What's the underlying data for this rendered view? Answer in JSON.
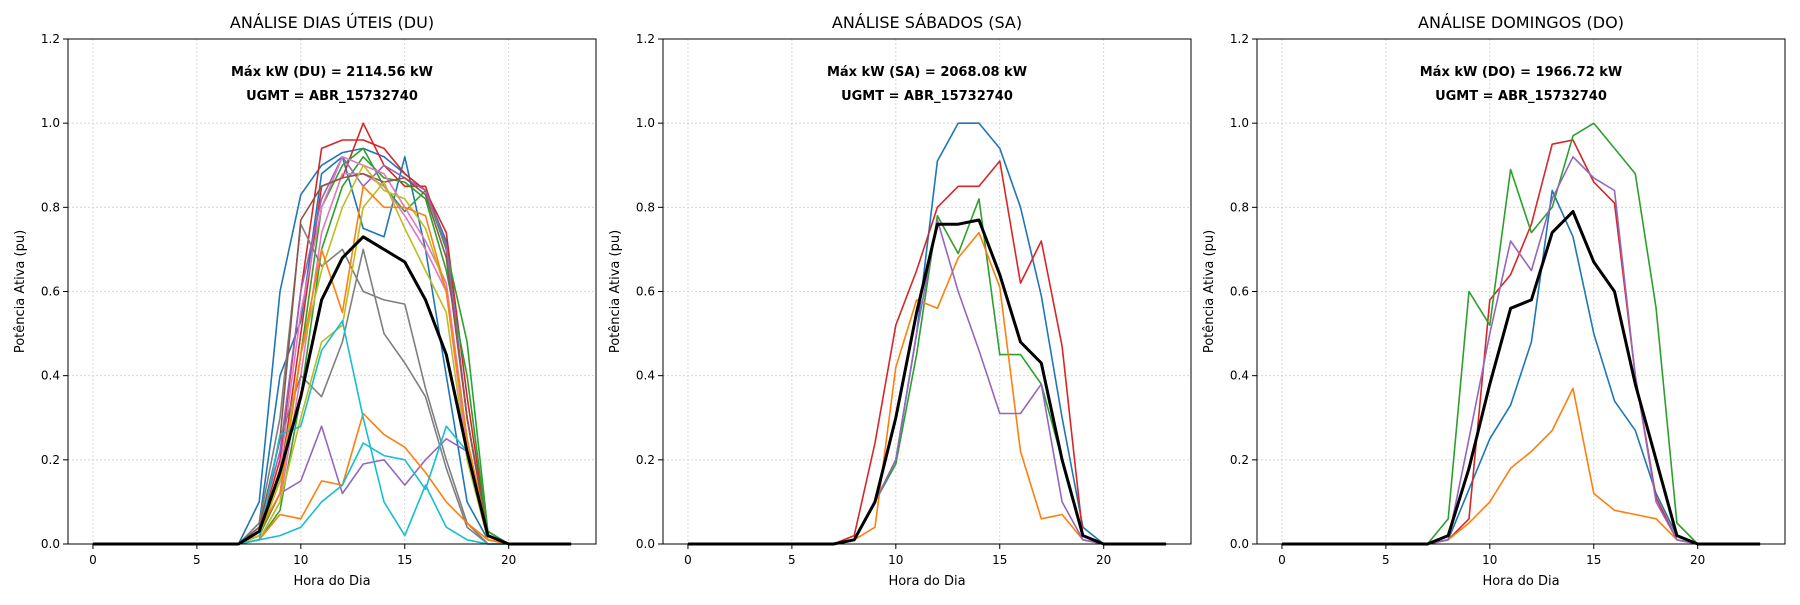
{
  "chart_data": [
    {
      "type": "line",
      "title": "ANÁLISE DIAS ÚTEIS (DU)",
      "xlabel": "Hora do Dia",
      "ylabel": "Potência Ativa (pu)",
      "xlim": [
        -1.2,
        24.2
      ],
      "ylim": [
        0,
        1.2
      ],
      "xticks": [
        0,
        5,
        10,
        15,
        20
      ],
      "yticks": [
        0.0,
        0.2,
        0.4,
        0.6,
        0.8,
        1.0,
        1.2
      ],
      "grid": true,
      "annotations": [
        "Máx kW (DU) = 2114.56 kW",
        "UGMT = ABR_15732740"
      ],
      "x": [
        0,
        1,
        2,
        3,
        4,
        5,
        6,
        7,
        8,
        9,
        10,
        11,
        12,
        13,
        14,
        15,
        16,
        17,
        18,
        19,
        20,
        21,
        22,
        23
      ],
      "series": [
        {
          "color": "#1f77b4",
          "values": [
            0,
            0,
            0,
            0,
            0,
            0,
            0,
            0,
            0.1,
            0.6,
            0.83,
            0.9,
            0.93,
            0.94,
            0.92,
            0.88,
            0.84,
            0.72,
            0.3,
            0.03,
            0,
            0,
            0,
            0
          ]
        },
        {
          "color": "#1f77b4",
          "values": [
            0,
            0,
            0,
            0,
            0,
            0,
            0,
            0,
            0.05,
            0.4,
            0.53,
            0.88,
            0.92,
            0.75,
            0.73,
            0.92,
            0.7,
            0.4,
            0.1,
            0.01,
            0,
            0,
            0,
            0
          ]
        },
        {
          "color": "#d62728",
          "values": [
            0,
            0,
            0,
            0,
            0,
            0,
            0,
            0,
            0.03,
            0.2,
            0.6,
            0.94,
            0.96,
            0.96,
            0.94,
            0.88,
            0.84,
            0.74,
            0.35,
            0.02,
            0,
            0,
            0,
            0
          ]
        },
        {
          "color": "#d62728",
          "values": [
            0,
            0,
            0,
            0,
            0,
            0,
            0,
            0,
            0.02,
            0.15,
            0.5,
            0.85,
            0.87,
            1.0,
            0.9,
            0.85,
            0.85,
            0.7,
            0.3,
            0.02,
            0,
            0,
            0,
            0
          ]
        },
        {
          "color": "#2ca02c",
          "values": [
            0,
            0,
            0,
            0,
            0,
            0,
            0,
            0,
            0.02,
            0.12,
            0.45,
            0.8,
            0.9,
            0.94,
            0.85,
            0.79,
            0.84,
            0.7,
            0.48,
            0.03,
            0,
            0,
            0,
            0
          ]
        },
        {
          "color": "#2ca02c",
          "values": [
            0,
            0,
            0,
            0,
            0,
            0,
            0,
            0,
            0.01,
            0.08,
            0.35,
            0.7,
            0.85,
            0.92,
            0.87,
            0.86,
            0.82,
            0.65,
            0.4,
            0.02,
            0,
            0,
            0,
            0
          ]
        },
        {
          "color": "#9467bd",
          "values": [
            0,
            0,
            0,
            0,
            0,
            0,
            0,
            0,
            0.04,
            0.22,
            0.6,
            0.82,
            0.92,
            0.85,
            0.9,
            0.87,
            0.84,
            0.71,
            0.3,
            0.02,
            0,
            0,
            0,
            0
          ]
        },
        {
          "color": "#9467bd",
          "values": [
            0,
            0,
            0,
            0,
            0,
            0,
            0,
            0,
            0.03,
            0.12,
            0.15,
            0.28,
            0.12,
            0.19,
            0.2,
            0.14,
            0.2,
            0.25,
            0.22,
            0.02,
            0,
            0,
            0,
            0
          ]
        },
        {
          "color": "#e377c2",
          "values": [
            0,
            0,
            0,
            0,
            0,
            0,
            0,
            0,
            0.02,
            0.18,
            0.55,
            0.8,
            0.92,
            0.9,
            0.88,
            0.8,
            0.72,
            0.62,
            0.25,
            0.02,
            0,
            0,
            0,
            0
          ]
        },
        {
          "color": "#e377c2",
          "values": [
            0,
            0,
            0,
            0,
            0,
            0,
            0,
            0,
            0.01,
            0.1,
            0.4,
            0.74,
            0.88,
            0.88,
            0.85,
            0.78,
            0.7,
            0.6,
            0.22,
            0.01,
            0,
            0,
            0,
            0
          ]
        },
        {
          "color": "#7f7f7f",
          "values": [
            0,
            0,
            0,
            0,
            0,
            0,
            0,
            0,
            0.05,
            0.3,
            0.76,
            0.66,
            0.7,
            0.6,
            0.58,
            0.57,
            0.37,
            0.2,
            0.05,
            0,
            0,
            0,
            0,
            0
          ]
        },
        {
          "color": "#7f7f7f",
          "values": [
            0,
            0,
            0,
            0,
            0,
            0,
            0,
            0,
            0.03,
            0.25,
            0.4,
            0.35,
            0.48,
            0.7,
            0.5,
            0.43,
            0.35,
            0.18,
            0.04,
            0,
            0,
            0,
            0,
            0
          ]
        },
        {
          "color": "#8c564b",
          "values": [
            0,
            0,
            0,
            0,
            0,
            0,
            0,
            0,
            0.04,
            0.25,
            0.77,
            0.85,
            0.87,
            0.88,
            0.86,
            0.87,
            0.83,
            0.68,
            0.3,
            0.02,
            0,
            0,
            0,
            0
          ]
        },
        {
          "color": "#bcbd22",
          "values": [
            0,
            0,
            0,
            0,
            0,
            0,
            0,
            0,
            0.02,
            0.15,
            0.45,
            0.65,
            0.8,
            0.9,
            0.84,
            0.82,
            0.75,
            0.6,
            0.25,
            0.02,
            0,
            0,
            0,
            0
          ]
        },
        {
          "color": "#bcbd22",
          "values": [
            0,
            0,
            0,
            0,
            0,
            0,
            0,
            0,
            0.01,
            0.1,
            0.3,
            0.48,
            0.52,
            0.8,
            0.86,
            0.75,
            0.65,
            0.55,
            0.2,
            0.01,
            0,
            0,
            0,
            0
          ]
        },
        {
          "color": "#ff7f0e",
          "values": [
            0,
            0,
            0,
            0,
            0,
            0,
            0,
            0,
            0.03,
            0.12,
            0.45,
            0.7,
            0.55,
            0.85,
            0.8,
            0.8,
            0.78,
            0.6,
            0.25,
            0.02,
            0,
            0,
            0,
            0
          ]
        },
        {
          "color": "#ff7f0e",
          "values": [
            0,
            0,
            0,
            0,
            0,
            0,
            0,
            0,
            0.01,
            0.07,
            0.06,
            0.15,
            0.14,
            0.31,
            0.26,
            0.23,
            0.17,
            0.1,
            0.05,
            0.01,
            0,
            0,
            0,
            0
          ]
        },
        {
          "color": "#17becf",
          "values": [
            0,
            0,
            0,
            0,
            0,
            0,
            0,
            0,
            0.01,
            0.26,
            0.28,
            0.46,
            0.53,
            0.3,
            0.1,
            0.02,
            0.14,
            0.04,
            0.01,
            0,
            0,
            0,
            0,
            0
          ]
        },
        {
          "color": "#17becf",
          "values": [
            0,
            0,
            0,
            0,
            0,
            0,
            0,
            0,
            0.01,
            0.02,
            0.04,
            0.1,
            0.14,
            0.24,
            0.21,
            0.2,
            0.13,
            0.28,
            0.22,
            0.02,
            0,
            0,
            0,
            0
          ]
        },
        {
          "color": "#000000",
          "width": 3,
          "values": [
            0,
            0,
            0,
            0,
            0,
            0,
            0,
            0,
            0.03,
            0.17,
            0.35,
            0.58,
            0.68,
            0.73,
            0.7,
            0.67,
            0.58,
            0.45,
            0.22,
            0.02,
            0,
            0,
            0,
            0
          ]
        }
      ]
    },
    {
      "type": "line",
      "title": "ANÁLISE SÁBADOS (SA)",
      "xlabel": "Hora do Dia",
      "ylabel": "Potência Ativa (pu)",
      "xlim": [
        -1.2,
        24.2
      ],
      "ylim": [
        0,
        1.2
      ],
      "xticks": [
        0,
        5,
        10,
        15,
        20
      ],
      "yticks": [
        0.0,
        0.2,
        0.4,
        0.6,
        0.8,
        1.0,
        1.2
      ],
      "grid": true,
      "annotations": [
        "Máx kW (SA) = 2068.08 kW",
        "UGMT = ABR_15732740"
      ],
      "x": [
        0,
        1,
        2,
        3,
        4,
        5,
        6,
        7,
        8,
        9,
        10,
        11,
        12,
        13,
        14,
        15,
        16,
        17,
        18,
        19,
        20,
        21,
        22,
        23
      ],
      "series": [
        {
          "color": "#1f77b4",
          "values": [
            0,
            0,
            0,
            0,
            0,
            0,
            0,
            0,
            0.01,
            0.1,
            0.2,
            0.5,
            0.91,
            1.0,
            1.0,
            0.94,
            0.8,
            0.59,
            0.3,
            0.04,
            0,
            0,
            0,
            0
          ]
        },
        {
          "color": "#d62728",
          "values": [
            0,
            0,
            0,
            0,
            0,
            0,
            0,
            0,
            0.02,
            0.24,
            0.52,
            0.65,
            0.8,
            0.85,
            0.85,
            0.91,
            0.62,
            0.72,
            0.47,
            0.02,
            0,
            0,
            0,
            0
          ]
        },
        {
          "color": "#2ca02c",
          "values": [
            0,
            0,
            0,
            0,
            0,
            0,
            0,
            0,
            0.01,
            0.1,
            0.19,
            0.45,
            0.78,
            0.69,
            0.82,
            0.45,
            0.45,
            0.38,
            0.2,
            0.02,
            0,
            0,
            0,
            0
          ]
        },
        {
          "color": "#ff7f0e",
          "values": [
            0,
            0,
            0,
            0,
            0,
            0,
            0,
            0,
            0.01,
            0.04,
            0.42,
            0.58,
            0.56,
            0.68,
            0.74,
            0.61,
            0.22,
            0.06,
            0.07,
            0.01,
            0,
            0,
            0,
            0
          ]
        },
        {
          "color": "#9467bd",
          "values": [
            0,
            0,
            0,
            0,
            0,
            0,
            0,
            0,
            0.01,
            0.1,
            0.2,
            0.5,
            0.77,
            0.6,
            0.46,
            0.31,
            0.31,
            0.38,
            0.1,
            0.01,
            0,
            0,
            0,
            0
          ]
        },
        {
          "color": "#000000",
          "width": 3,
          "values": [
            0,
            0,
            0,
            0,
            0,
            0,
            0,
            0,
            0.01,
            0.1,
            0.3,
            0.55,
            0.76,
            0.76,
            0.77,
            0.64,
            0.48,
            0.43,
            0.2,
            0.02,
            0,
            0,
            0,
            0
          ]
        }
      ]
    },
    {
      "type": "line",
      "title": "ANÁLISE DOMINGOS (DO)",
      "xlabel": "Hora do Dia",
      "ylabel": "Potência Ativa (pu)",
      "xlim": [
        -1.2,
        24.2
      ],
      "ylim": [
        0,
        1.2
      ],
      "xticks": [
        0,
        5,
        10,
        15,
        20
      ],
      "yticks": [
        0.0,
        0.2,
        0.4,
        0.6,
        0.8,
        1.0,
        1.2
      ],
      "grid": true,
      "annotations": [
        "Máx kW (DO) = 1966.72 kW",
        "UGMT = ABR_15732740"
      ],
      "x": [
        0,
        1,
        2,
        3,
        4,
        5,
        6,
        7,
        8,
        9,
        10,
        11,
        12,
        13,
        14,
        15,
        16,
        17,
        18,
        19,
        20,
        21,
        22,
        23
      ],
      "series": [
        {
          "color": "#1f77b4",
          "values": [
            0,
            0,
            0,
            0,
            0,
            0,
            0,
            0,
            0.01,
            0.13,
            0.25,
            0.33,
            0.48,
            0.84,
            0.73,
            0.5,
            0.34,
            0.27,
            0.12,
            0.02,
            0,
            0,
            0,
            0
          ]
        },
        {
          "color": "#d62728",
          "values": [
            0,
            0,
            0,
            0,
            0,
            0,
            0,
            0,
            0.01,
            0.06,
            0.58,
            0.64,
            0.76,
            0.95,
            0.96,
            0.86,
            0.81,
            0.4,
            0.11,
            0.01,
            0,
            0,
            0,
            0
          ]
        },
        {
          "color": "#2ca02c",
          "values": [
            0,
            0,
            0,
            0,
            0,
            0,
            0,
            0,
            0.06,
            0.6,
            0.52,
            0.89,
            0.74,
            0.8,
            0.97,
            1.0,
            0.94,
            0.88,
            0.56,
            0.05,
            0,
            0,
            0,
            0
          ]
        },
        {
          "color": "#ff7f0e",
          "values": [
            0,
            0,
            0,
            0,
            0,
            0,
            0,
            0,
            0.01,
            0.05,
            0.1,
            0.18,
            0.22,
            0.27,
            0.37,
            0.12,
            0.08,
            0.07,
            0.06,
            0.01,
            0,
            0,
            0,
            0
          ]
        },
        {
          "color": "#9467bd",
          "values": [
            0,
            0,
            0,
            0,
            0,
            0,
            0,
            0,
            0.01,
            0.25,
            0.5,
            0.72,
            0.65,
            0.82,
            0.92,
            0.87,
            0.84,
            0.4,
            0.1,
            0.01,
            0,
            0,
            0,
            0
          ]
        },
        {
          "color": "#000000",
          "width": 3,
          "values": [
            0,
            0,
            0,
            0,
            0,
            0,
            0,
            0,
            0.02,
            0.18,
            0.38,
            0.56,
            0.58,
            0.74,
            0.79,
            0.67,
            0.6,
            0.38,
            0.2,
            0.02,
            0,
            0,
            0,
            0
          ]
        }
      ]
    }
  ]
}
